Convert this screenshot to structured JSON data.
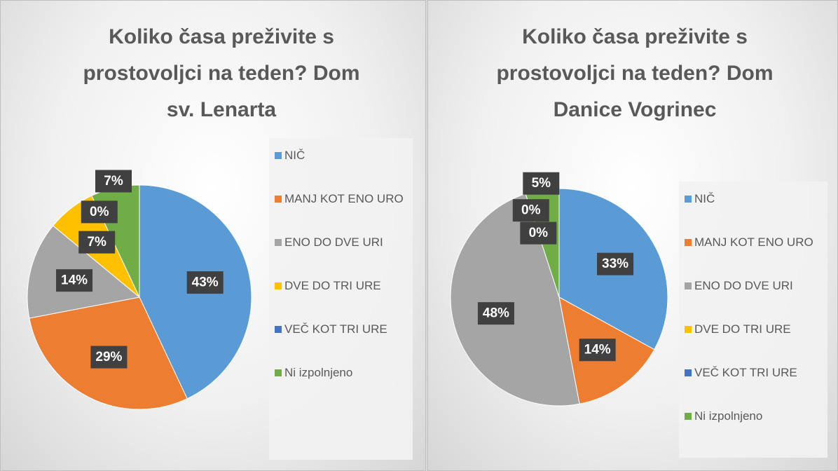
{
  "chart_data": [
    {
      "type": "pie",
      "title": "Koliko časa preživite s prostovoljci na teden? Dom sv. Lenarta",
      "categories": [
        "NIČ",
        "MANJ KOT ENO URO",
        "ENO DO DVE URI",
        "DVE DO TRI URE",
        "VEČ KOT TRI URE",
        "Ni izpolnjeno"
      ],
      "values": [
        43,
        29,
        14,
        7,
        0,
        7
      ],
      "value_labels": [
        "43%",
        "29%",
        "14%",
        "7%",
        "0%",
        "7%"
      ],
      "colors": [
        "#5b9bd5",
        "#ed7d31",
        "#a5a5a5",
        "#ffc000",
        "#4472c4",
        "#70ad47"
      ]
    },
    {
      "type": "pie",
      "title": "Koliko časa preživite s prostovoljci na teden?  Dom Danice Vogrinec",
      "categories": [
        "NIČ",
        "MANJ KOT ENO URO",
        "ENO DO DVE URI",
        "DVE DO TRI URE",
        "VEČ KOT TRI URE",
        "Ni izpolnjeno"
      ],
      "values": [
        33,
        14,
        48,
        0,
        0,
        5
      ],
      "value_labels": [
        "33%",
        "14%",
        "48%",
        "0%",
        "0%",
        "5%"
      ],
      "colors": [
        "#5b9bd5",
        "#ed7d31",
        "#a5a5a5",
        "#ffc000",
        "#4472c4",
        "#70ad47"
      ]
    }
  ]
}
